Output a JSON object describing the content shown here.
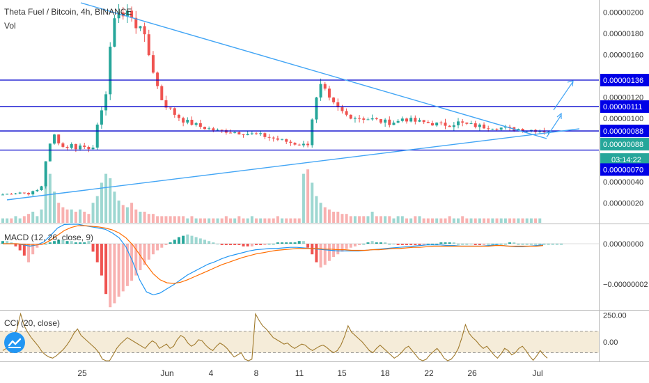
{
  "header": {
    "symbol_title": "Theta Fuel / Bitcoin, 4h, BINANCE",
    "vol_label": "Vol",
    "macd_label": "MACD (12, 26, close, 9)",
    "cci_label": "CCI (20, close)"
  },
  "colors": {
    "up": "#26a69a",
    "down": "#ef5350",
    "hline": "#0000cc",
    "trendline": "#42a5f5",
    "macd_line": "#2196f3",
    "signal_line": "#ff6d00",
    "cci_line": "#a07a2c",
    "cci_band": "#f5ecd9",
    "tag_blue": "#0000e6",
    "tag_green": "#26a69a",
    "logo": "#2196f3"
  },
  "icons": {
    "logo": "tradingview-logo-icon",
    "arrow": "arrow-icon"
  },
  "chart_data": [
    {
      "type": "candlestick",
      "panel": "price",
      "y_ticks": [
        "0.00000200",
        "0.00000180",
        "0.00000160",
        "0.00000120",
        "0.00000100",
        "0.00000040",
        "0.00000020"
      ],
      "x_ticks": [
        "25",
        "Jun",
        "4",
        "8",
        "11",
        "15",
        "18",
        "22",
        "26",
        "Jul"
      ],
      "ylim": [
        1e-07,
        2.1e-06
      ],
      "close_path": [
        [
          0,
          28
        ],
        [
          2,
          29
        ],
        [
          4,
          30
        ],
        [
          6,
          29
        ],
        [
          8,
          32
        ],
        [
          9,
          36
        ],
        [
          10,
          60
        ],
        [
          11,
          75
        ],
        [
          12,
          84
        ],
        [
          13,
          78
        ],
        [
          14,
          73
        ],
        [
          15,
          73
        ],
        [
          16,
          75
        ],
        [
          17,
          72
        ],
        [
          18,
          74
        ],
        [
          19,
          73
        ],
        [
          20,
          72
        ],
        [
          21,
          74
        ],
        [
          22,
          92
        ],
        [
          23,
          105
        ],
        [
          24,
          125
        ],
        [
          25,
          168
        ],
        [
          26,
          190
        ],
        [
          27,
          203
        ],
        [
          28,
          197
        ],
        [
          29,
          201
        ],
        [
          30,
          193
        ],
        [
          31,
          187
        ],
        [
          32,
          190
        ],
        [
          33,
          175
        ],
        [
          34,
          160
        ],
        [
          35,
          145
        ],
        [
          36,
          130
        ],
        [
          37,
          118
        ],
        [
          38,
          112
        ],
        [
          40,
          104
        ],
        [
          42,
          98
        ],
        [
          44,
          95
        ],
        [
          46,
          92
        ],
        [
          48,
          90
        ],
        [
          50,
          88
        ],
        [
          52,
          88
        ],
        [
          54,
          87
        ],
        [
          56,
          86
        ],
        [
          58,
          85
        ],
        [
          60,
          84
        ],
        [
          62,
          82
        ],
        [
          64,
          80
        ],
        [
          66,
          78
        ],
        [
          68,
          76
        ],
        [
          70,
          75
        ],
        [
          71,
          76
        ],
        [
          72,
          100
        ],
        [
          73,
          118
        ],
        [
          74,
          130
        ],
        [
          75,
          125
        ],
        [
          76,
          117
        ],
        [
          77,
          113
        ],
        [
          78,
          109
        ],
        [
          80,
          103
        ],
        [
          82,
          101
        ],
        [
          84,
          100
        ],
        [
          86,
          99
        ],
        [
          88,
          97
        ],
        [
          90,
          96
        ],
        [
          92,
          97
        ],
        [
          93,
          100
        ],
        [
          94,
          99
        ],
        [
          96,
          97
        ],
        [
          98,
          96
        ],
        [
          100,
          95
        ],
        [
          102,
          94
        ],
        [
          104,
          94
        ],
        [
          106,
          96
        ],
        [
          108,
          94
        ],
        [
          110,
          93
        ],
        [
          112,
          92
        ],
        [
          114,
          92
        ],
        [
          116,
          91
        ],
        [
          118,
          90
        ],
        [
          120,
          90
        ],
        [
          122,
          89
        ],
        [
          124,
          89
        ],
        [
          126,
          88
        ]
      ],
      "horizontal_levels": [
        {
          "value": "0.00000136",
          "label": "0.00000136"
        },
        {
          "value": "0.00000111",
          "label": "0.00000111"
        },
        {
          "value": "0.00000088",
          "label": "0.00000088"
        },
        {
          "value": "0.00000070",
          "label": "0.00000070"
        }
      ],
      "price_tags": [
        {
          "label": "0.00000136",
          "style": "blue"
        },
        {
          "label": "0.00000111",
          "style": "blue"
        },
        {
          "label": "0.00000088",
          "style": "blue"
        },
        {
          "label": "0.00000088",
          "style": "green"
        },
        {
          "label": "03:14:22",
          "style": "green"
        },
        {
          "label": "0.00000070",
          "style": "blue"
        }
      ],
      "volume": [
        2,
        2,
        2,
        3,
        2,
        3,
        4,
        5,
        3,
        6,
        18,
        22,
        14,
        9,
        7,
        6,
        6,
        5,
        6,
        5,
        4,
        9,
        12,
        18,
        22,
        20,
        14,
        10,
        8,
        7,
        9,
        6,
        5,
        5,
        4,
        4,
        3,
        3,
        3,
        3,
        3,
        3,
        3,
        2,
        3,
        2,
        2,
        2,
        2,
        2,
        2,
        2,
        3,
        2,
        2,
        3,
        2,
        2,
        3,
        2,
        2,
        2,
        2,
        2,
        3,
        2,
        2,
        2,
        2,
        2,
        22,
        24,
        18,
        12,
        9,
        7,
        6,
        5,
        5,
        4,
        4,
        3,
        3,
        3,
        3,
        3,
        5,
        3,
        3,
        3,
        3,
        2,
        3,
        3,
        2,
        2,
        3,
        3,
        2,
        2,
        2,
        2,
        2,
        2,
        3,
        2,
        2,
        3,
        2,
        2,
        2,
        2,
        2,
        2,
        2,
        2,
        2,
        2,
        2,
        2,
        2,
        2,
        2,
        2,
        2,
        2
      ]
    },
    {
      "type": "histogram+line",
      "panel": "MACD (12, 26, close, 9)",
      "y_ticks": [
        "0.00000000",
        "−0.00000002"
      ],
      "ylim": [
        -3.5e-08,
        1.2e-08
      ],
      "histogram": [
        2,
        2,
        1,
        -2,
        -5,
        -9,
        -14,
        -8,
        -3,
        -1,
        0,
        1,
        2,
        3,
        3,
        2,
        2,
        1,
        1,
        1,
        2,
        -6,
        -14,
        -24,
        -38,
        -48,
        -45,
        -40,
        -36,
        -32,
        -28,
        -24,
        -20,
        -16,
        -12,
        -8,
        -5,
        -3,
        -1,
        1,
        3,
        5,
        6,
        7,
        6,
        5,
        4,
        3,
        2,
        1,
        0,
        -1,
        -1,
        -1,
        -1,
        -1,
        -2,
        -2,
        -2,
        -1,
        -1,
        -1,
        0,
        0,
        1,
        1,
        1,
        1,
        1,
        2,
        2,
        -3,
        -8,
        -14,
        -18,
        -16,
        -13,
        -10,
        -8,
        -6,
        -4,
        -3,
        -2,
        -1,
        0,
        1,
        2,
        1,
        1,
        1,
        0,
        0,
        -1,
        -1,
        -1,
        -1,
        -1,
        -1,
        -1,
        0,
        0,
        0,
        1,
        1,
        1,
        1,
        0,
        0,
        0,
        0,
        -1,
        -1,
        -1,
        0,
        0,
        0,
        0,
        0,
        1,
        1,
        0,
        0,
        0,
        0,
        0,
        0,
        0,
        0,
        0,
        0,
        0
      ],
      "macd_line": [
        0,
        0,
        0,
        -2,
        -4,
        -2,
        3,
        14,
        26,
        32,
        34,
        33,
        30,
        28,
        26,
        24,
        18,
        10,
        -5,
        -30,
        -60,
        -80,
        -85,
        -82,
        -75,
        -68,
        -60,
        -52,
        -46,
        -40,
        -34,
        -30,
        -25,
        -21,
        -18,
        -15,
        -12,
        -10,
        -9,
        -8,
        -8,
        -7,
        -6,
        -6,
        -7,
        -8,
        -9,
        -10,
        -11,
        -12,
        -12,
        -12,
        -12,
        -11,
        -10,
        -9,
        -8,
        -7,
        -6,
        -5,
        -4,
        -3,
        -2,
        -2,
        -2,
        -3,
        -3,
        -4,
        -4,
        -4,
        -4,
        -3,
        -2,
        -3,
        -4,
        -5,
        -5,
        -4,
        -3,
        -2
      ],
      "signal_line": [
        0,
        0,
        0,
        -1,
        -2,
        -2,
        0,
        6,
        14,
        22,
        27,
        30,
        30,
        29,
        28,
        26,
        23,
        18,
        10,
        -2,
        -18,
        -35,
        -50,
        -60,
        -65,
        -66,
        -64,
        -60,
        -55,
        -50,
        -45,
        -40,
        -35,
        -31,
        -27,
        -23,
        -20,
        -17,
        -15,
        -13,
        -11,
        -10,
        -9,
        -8,
        -8,
        -8,
        -8,
        -9,
        -9,
        -10,
        -10,
        -11,
        -11,
        -11,
        -10,
        -10,
        -9,
        -8,
        -8,
        -7,
        -6,
        -6,
        -5,
        -4,
        -4,
        -4,
        -4,
        -4,
        -4,
        -4,
        -4,
        -4,
        -3,
        -3,
        -4,
        -4,
        -4,
        -4,
        -4,
        -3
      ]
    },
    {
      "type": "line",
      "panel": "CCI (20, close)",
      "y_ticks": [
        "250.00",
        "0.00"
      ],
      "ylim": [
        -200,
        260
      ],
      "band": [
        -100,
        100
      ],
      "values": [
        -80,
        -60,
        -20,
        40,
        120,
        260,
        150,
        90,
        40,
        0,
        -40,
        -90,
        -120,
        -140,
        -150,
        -130,
        -100,
        -70,
        -30,
        20,
        80,
        120,
        60,
        30,
        0,
        -30,
        -60,
        -100,
        -160,
        -200,
        -180,
        -120,
        -60,
        -20,
        10,
        40,
        20,
        0,
        -20,
        -40,
        -60,
        -20,
        10,
        -10,
        -60,
        -40,
        -20,
        -60,
        -40,
        20,
        60,
        40,
        -10,
        -40,
        -20,
        20,
        10,
        -30,
        -60,
        -80,
        -40,
        -10,
        -30,
        -60,
        -100,
        -140,
        -120,
        -100,
        -160,
        -200,
        -160,
        260,
        200,
        150,
        120,
        80,
        40,
        20,
        0,
        -20,
        -10,
        -40,
        -60,
        -40,
        -20,
        -30,
        -60,
        -80,
        -60,
        -40,
        -30,
        -50,
        -80,
        -100,
        -80,
        -30,
        50,
        150,
        90,
        60,
        30,
        0,
        -40,
        -80,
        -100,
        -60,
        -30,
        -60,
        -90,
        -120,
        -150,
        -130,
        -100,
        -60,
        -40,
        -80,
        -120,
        -160,
        -200,
        -160,
        -120,
        -90,
        -60,
        -100,
        -150,
        -180,
        -160,
        -120,
        -60,
        40,
        160,
        80,
        40,
        10,
        -30,
        -60,
        -40,
        -80,
        -120,
        -150,
        -110,
        -60,
        -80,
        -120,
        -100,
        -60,
        -40,
        -80,
        -130,
        -170,
        -130,
        -80,
        -120,
        -150
      ]
    }
  ]
}
